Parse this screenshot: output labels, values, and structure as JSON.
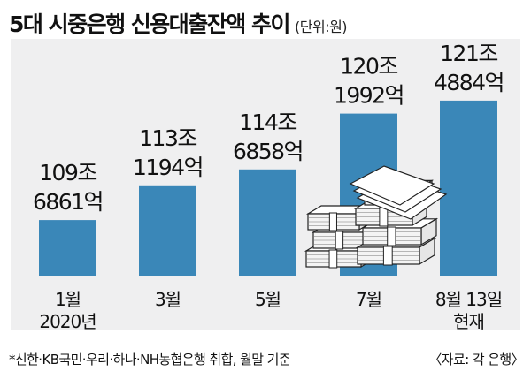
{
  "header": {
    "title": "5대 시중은행 신용대출잔액 추이",
    "unit": "(단위:원)"
  },
  "footer": {
    "note": "*신한·KB국민·우리·하나·NH농협은행 취합, 월말 기준",
    "source": "〈자료: 각 은행〉"
  },
  "colors": {
    "bar": "#3a87b8",
    "plot_background": "#efeff0"
  },
  "icons": [
    "money-stack-icon"
  ],
  "chart_data": {
    "type": "bar",
    "title": "5대 시중은행 신용대출잔액 추이",
    "unit": "원",
    "categories": [
      {
        "lines": [
          "1월",
          "2020년"
        ]
      },
      {
        "lines": [
          "3월"
        ]
      },
      {
        "lines": [
          "5월"
        ]
      },
      {
        "lines": [
          "7월"
        ]
      },
      {
        "lines": [
          "8월 13일",
          "현재"
        ]
      }
    ],
    "values": [
      109.6861,
      113.1194,
      114.6858,
      120.1992,
      121.4884
    ],
    "value_unit": "조원",
    "data_labels": [
      [
        "109조",
        "6861억"
      ],
      [
        "113조",
        "1194억"
      ],
      [
        "114조",
        "6858억"
      ],
      [
        "120조",
        "1992억"
      ],
      [
        "121조",
        "4884억"
      ]
    ],
    "xlabel": "",
    "ylabel": "",
    "ylim": [
      104.2,
      122
    ],
    "grid": false,
    "legend": "none"
  }
}
